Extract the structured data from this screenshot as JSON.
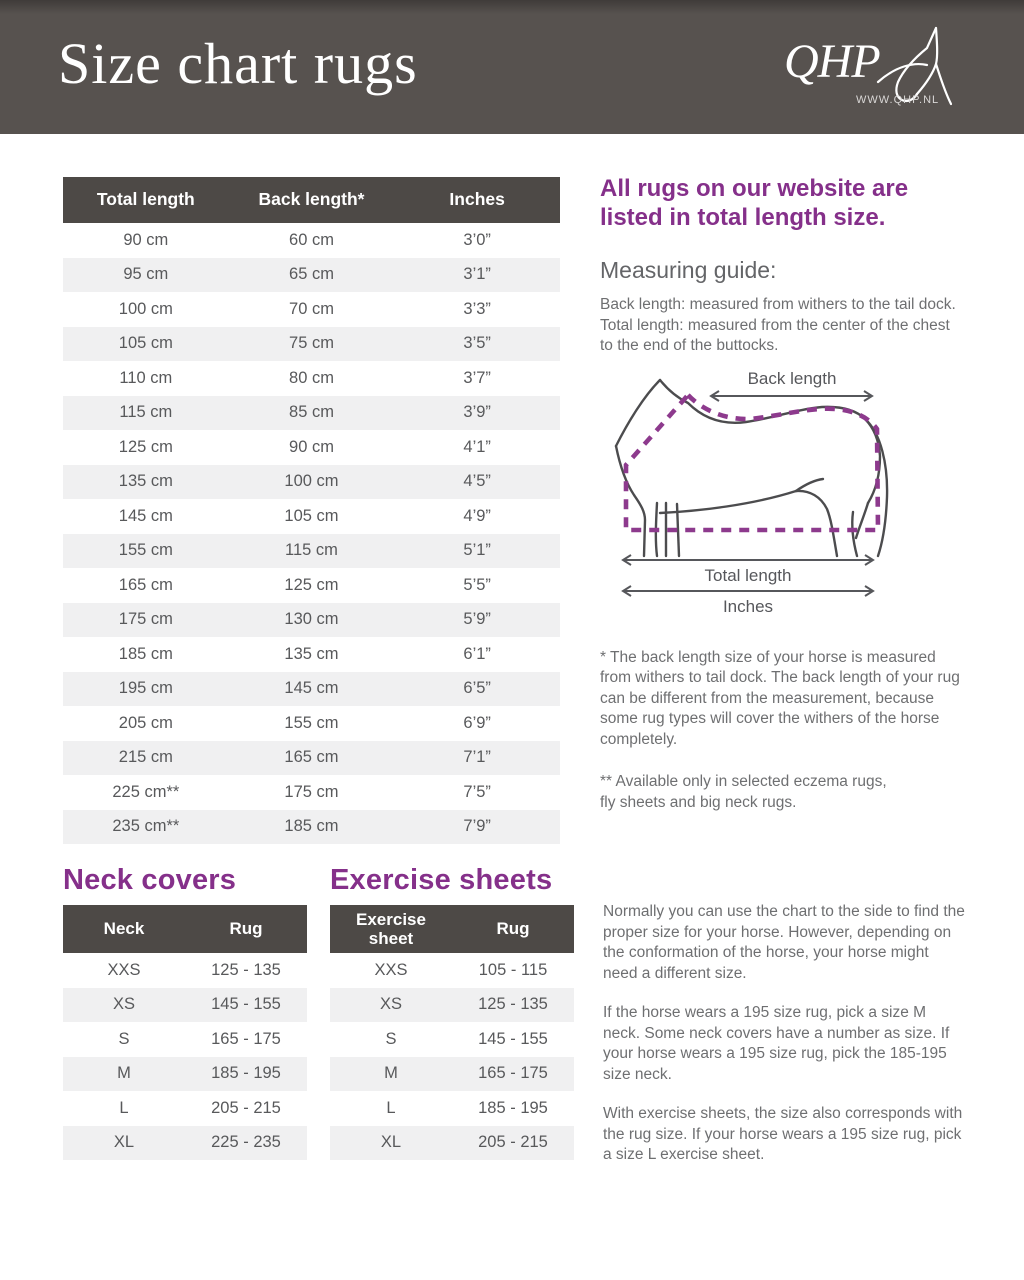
{
  "header": {
    "title": "Size chart rugs",
    "logo_text": "QHP",
    "logo_url": "WWW.QHP.NL"
  },
  "main_table": {
    "headers": [
      "Total length",
      "Back length*",
      "Inches"
    ],
    "rows": [
      [
        "90 cm",
        "60 cm",
        "3’0”"
      ],
      [
        "95 cm",
        "65 cm",
        "3’1”"
      ],
      [
        "100 cm",
        "70 cm",
        "3’3”"
      ],
      [
        "105 cm",
        "75 cm",
        "3’5”"
      ],
      [
        "110 cm",
        "80 cm",
        "3’7”"
      ],
      [
        "115 cm",
        "85 cm",
        "3’9”"
      ],
      [
        "125 cm",
        "90 cm",
        "4’1”"
      ],
      [
        "135 cm",
        "100 cm",
        "4’5”"
      ],
      [
        "145 cm",
        "105 cm",
        "4’9”"
      ],
      [
        "155 cm",
        "115 cm",
        "5’1”"
      ],
      [
        "165 cm",
        "125 cm",
        "5’5”"
      ],
      [
        "175 cm",
        "130 cm",
        "5’9”"
      ],
      [
        "185 cm",
        "135 cm",
        "6’1”"
      ],
      [
        "195 cm",
        "145 cm",
        "6’5”"
      ],
      [
        "205 cm",
        "155 cm",
        "6’9”"
      ],
      [
        "215 cm",
        "165 cm",
        "7’1”"
      ],
      [
        "225 cm**",
        "175 cm",
        "7’5”"
      ],
      [
        "235 cm**",
        "185 cm",
        "7’9”"
      ]
    ]
  },
  "info": {
    "heading": "All rugs on our website are listed in total length size.",
    "measuring_guide_title": "Measuring guide:",
    "guide_lines": [
      "Back length: measured from withers to the tail dock.",
      "Total length: measured from the center of the chest to the end of the buttocks."
    ],
    "footnote1": "* The back length size of your horse is measured from withers to tail dock. The back length of your rug can be different from the measurement, because some rug types will cover the withers of the horse completely.",
    "footnote2": "** Available only in selected eczema rugs,\nfly sheets and big neck rugs."
  },
  "diagram": {
    "back_length_label": "Back length",
    "total_length_label": "Total length",
    "inches_label": "Inches"
  },
  "neck_covers": {
    "title": "Neck covers",
    "headers": [
      "Neck",
      "Rug"
    ],
    "rows": [
      [
        "XXS",
        "125 - 135"
      ],
      [
        "XS",
        "145 - 155"
      ],
      [
        "S",
        "165 - 175"
      ],
      [
        "M",
        "185 - 195"
      ],
      [
        "L",
        "205 - 215"
      ],
      [
        "XL",
        "225 - 235"
      ]
    ]
  },
  "exercise_sheets": {
    "title": "Exercise sheets",
    "headers": [
      "Exercise sheet",
      "Rug"
    ],
    "rows": [
      [
        "XXS",
        "105 - 115"
      ],
      [
        "XS",
        "125 - 135"
      ],
      [
        "S",
        "145 - 155"
      ],
      [
        "M",
        "165 - 175"
      ],
      [
        "L",
        "185 - 195"
      ],
      [
        "XL",
        "205 - 215"
      ]
    ]
  },
  "bottom_text": {
    "paragraphs": [
      "Normally you can use the chart to the side to find the proper size for your horse.  However, depending on the conformation of the horse, your horse might need a different size.",
      "If the horse wears a 195 size rug, pick a size M neck. Some neck covers have a number as size. If your horse wears a 195 size rug, pick the 185-195 size neck.",
      "With exercise sheets, the size also corresponds with the rug size. If your horse wears a 195 size rug, pick a size L exercise sheet."
    ]
  },
  "colors": {
    "purple": "#85308a",
    "header-bg": "#57524f",
    "thead-bg": "#4d4946",
    "row-alt": "#f0f0f1",
    "text": "#6e6f71",
    "table-text": "#58595b",
    "line": "#4c4c4e"
  }
}
